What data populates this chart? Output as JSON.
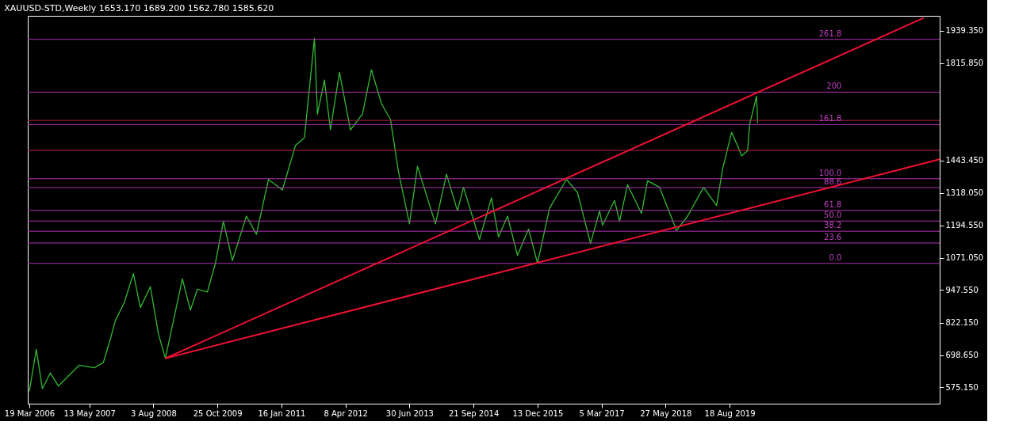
{
  "chart_data": {
    "type": "line",
    "title": "XAUUSD-STD,Weekly  1653.170 1689.200 1562.780 1585.620",
    "xlim": [
      "2006-03-08",
      "2023-08-27"
    ],
    "ylim": [
      512.5,
      1996
    ],
    "xticks": [
      {
        "value": "2006-03-19",
        "label": "19 Mar 2006"
      },
      {
        "value": "2007-05-13",
        "label": "13 May 2007"
      },
      {
        "value": "2008-08-03",
        "label": "3 Aug 2008"
      },
      {
        "value": "2009-10-25",
        "label": "25 Oct 2009"
      },
      {
        "value": "2011-01-16",
        "label": "16 Jan 2011"
      },
      {
        "value": "2012-04-08",
        "label": "8 Apr 2012"
      },
      {
        "value": "2013-06-30",
        "label": "30 Jun 2013"
      },
      {
        "value": "2014-09-21",
        "label": "21 Sep 2014"
      },
      {
        "value": "2015-12-13",
        "label": "13 Dec 2015"
      },
      {
        "value": "2017-03-05",
        "label": "5 Mar 2017"
      },
      {
        "value": "2018-05-27",
        "label": "27 May 2018"
      },
      {
        "value": "2019-08-18",
        "label": "18 Aug 2019"
      }
    ],
    "yticks": [
      {
        "value": 575.15,
        "label": "575.150"
      },
      {
        "value": 698.65,
        "label": "698.650"
      },
      {
        "value": 822.15,
        "label": "822.150"
      },
      {
        "value": 947.55,
        "label": "947.550"
      },
      {
        "value": 1071.05,
        "label": "1071.050"
      },
      {
        "value": 1194.55,
        "label": "1194.550"
      },
      {
        "value": 1318.05,
        "label": "1318.050"
      },
      {
        "value": 1443.45,
        "label": "1443.450"
      },
      {
        "value": 1815.85,
        "label": "1815.850"
      },
      {
        "value": 1939.35,
        "label": "1939.350"
      }
    ],
    "grid": false,
    "marker": "none",
    "line_style": "solid",
    "series": [
      {
        "type": "line",
        "color": "#33b833",
        "x": [
          "2006-03-19",
          "2006-05-07",
          "2006-06-18",
          "2006-08-13",
          "2006-10-08",
          "2007-01-07",
          "2007-03-04",
          "2007-06-17",
          "2007-08-19",
          "2007-10-07",
          "2007-11-11",
          "2008-01-13",
          "2008-03-16",
          "2008-05-04",
          "2008-07-13",
          "2008-09-07",
          "2008-10-26",
          "2009-02-22",
          "2009-04-19",
          "2009-06-07",
          "2009-08-16",
          "2009-10-11",
          "2009-12-06",
          "2010-02-07",
          "2010-05-16",
          "2010-07-25",
          "2010-10-17",
          "2011-01-23",
          "2011-04-24",
          "2011-06-26",
          "2011-09-04",
          "2011-09-25",
          "2011-11-13",
          "2011-12-25",
          "2012-02-26",
          "2012-05-13",
          "2012-08-05",
          "2012-10-07",
          "2012-12-16",
          "2013-02-17",
          "2013-04-14",
          "2013-06-30",
          "2013-08-25",
          "2013-12-29",
          "2014-03-16",
          "2014-06-01",
          "2014-07-13",
          "2014-11-02",
          "2015-01-25",
          "2015-03-15",
          "2015-05-17",
          "2015-07-26",
          "2015-10-11",
          "2015-12-13",
          "2016-03-06",
          "2016-07-03",
          "2016-09-18",
          "2016-12-18",
          "2017-02-19",
          "2017-03-12",
          "2017-06-04",
          "2017-07-09",
          "2017-09-03",
          "2017-12-10",
          "2018-01-21",
          "2018-04-15",
          "2018-08-12",
          "2018-10-28",
          "2019-02-17",
          "2019-05-19",
          "2019-06-30",
          "2019-09-01",
          "2019-10-20",
          "2019-11-10",
          "2019-12-22",
          "2020-01-05",
          "2020-02-23",
          "2020-03-01"
        ],
        "values": [
          560,
          720,
          570,
          630,
          580,
          630,
          660,
          650,
          670,
          760,
          830,
          900,
          1010,
          880,
          960,
          780,
          686,
          990,
          870,
          950,
          940,
          1050,
          1210,
          1060,
          1230,
          1160,
          1370,
          1330,
          1500,
          1530,
          1910,
          1620,
          1750,
          1560,
          1780,
          1560,
          1620,
          1790,
          1660,
          1600,
          1400,
          1200,
          1420,
          1200,
          1390,
          1250,
          1340,
          1140,
          1300,
          1150,
          1230,
          1080,
          1180,
          1050,
          1260,
          1370,
          1320,
          1125,
          1250,
          1195,
          1290,
          1210,
          1350,
          1240,
          1365,
          1340,
          1175,
          1230,
          1340,
          1270,
          1410,
          1550,
          1490,
          1460,
          1480,
          1580,
          1689,
          1586
        ]
      },
      {
        "type": "line",
        "color": "#ee1133",
        "x": [
          "2008-10-26",
          "2023-05-07"
        ],
        "values": [
          686,
          1988
        ]
      },
      {
        "type": "line",
        "color": "#ee1133",
        "x": [
          "2008-10-26",
          "2023-08-27"
        ],
        "values": [
          686,
          1447
        ]
      }
    ],
    "annotations": [
      {
        "text": "261.8",
        "x": "2021-10-10",
        "y": 1906
      },
      {
        "text": "200",
        "x": "2021-10-10",
        "y": 1704
      },
      {
        "text": "161.8",
        "x": "2021-10-10",
        "y": 1580
      },
      {
        "text": "100.0",
        "x": "2021-10-10",
        "y": 1373
      },
      {
        "text": "88.6",
        "x": "2021-10-10",
        "y": 1339
      },
      {
        "text": "61.8",
        "x": "2021-10-10",
        "y": 1252
      },
      {
        "text": "50.0",
        "x": "2021-10-10",
        "y": 1211
      },
      {
        "text": "38.2",
        "x": "2021-10-10",
        "y": 1172
      },
      {
        "text": "23.6",
        "x": "2021-10-10",
        "y": 1127
      },
      {
        "text": "0.0",
        "x": "2021-10-10",
        "y": 1049
      }
    ],
    "ref_lines": [
      {
        "axis": "y",
        "value": 1906,
        "color": "#b030b0"
      },
      {
        "axis": "y",
        "value": 1704,
        "color": "#b030b0"
      },
      {
        "axis": "y",
        "value": 1580,
        "color": "#b030b0"
      },
      {
        "axis": "y",
        "value": 1373,
        "color": "#b030b0"
      },
      {
        "axis": "y",
        "value": 1339,
        "color": "#b030b0"
      },
      {
        "axis": "y",
        "value": 1252,
        "color": "#b030b0"
      },
      {
        "axis": "y",
        "value": 1211,
        "color": "#b030b0"
      },
      {
        "axis": "y",
        "value": 1172,
        "color": "#b030b0"
      },
      {
        "axis": "y",
        "value": 1127,
        "color": "#b030b0"
      },
      {
        "axis": "y",
        "value": 1049,
        "color": "#b030b0"
      },
      {
        "axis": "y",
        "value": 1596,
        "color": "#b02040"
      },
      {
        "axis": "y",
        "value": 1481,
        "color": "#b02040"
      }
    ]
  }
}
